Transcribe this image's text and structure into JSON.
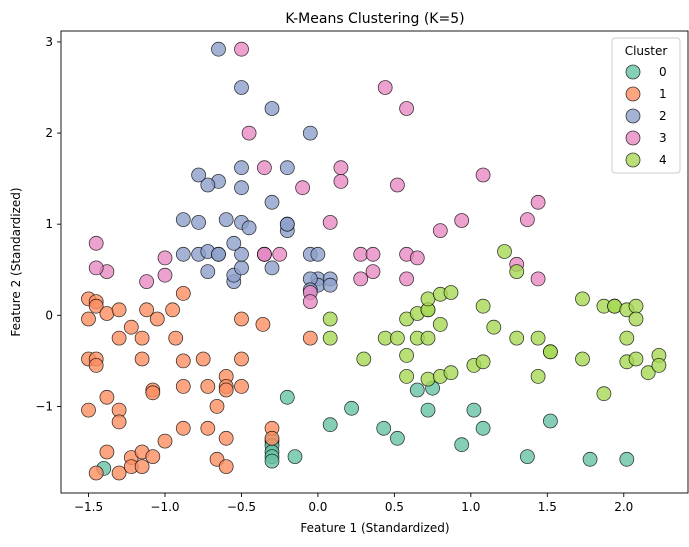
{
  "chart_data": {
    "type": "scatter",
    "title": "K-Means Clustering (K=5)",
    "xlabel": "Feature 1 (Standardized)",
    "ylabel": "Feature 2 (Standardized)",
    "xlim": [
      -1.68,
      2.42
    ],
    "ylim": [
      -1.95,
      3.12
    ],
    "xticks": [
      -1.5,
      -1.0,
      -0.5,
      0.0,
      0.5,
      1.0,
      1.5,
      2.0
    ],
    "xtick_labels": [
      "−1.5",
      "−1.0",
      "−0.5",
      "0.0",
      "0.5",
      "1.0",
      "1.5",
      "2.0"
    ],
    "yticks": [
      -1,
      0,
      1,
      2,
      3
    ],
    "ytick_labels": [
      "−1",
      "0",
      "1",
      "2",
      "3"
    ],
    "grid": false,
    "legend": {
      "title": "Cluster",
      "placement": "top-right"
    },
    "series": [
      {
        "name": "0",
        "color": "#66c2a5",
        "points": [
          [
            -1.4,
            -1.68
          ],
          [
            -0.3,
            -1.38
          ],
          [
            -0.3,
            -1.43
          ],
          [
            -0.3,
            -1.5
          ],
          [
            -0.3,
            -1.55
          ],
          [
            -0.3,
            -1.6
          ],
          [
            -0.2,
            -0.9
          ],
          [
            -0.15,
            -1.55
          ],
          [
            0.08,
            -1.2
          ],
          [
            0.22,
            -1.02
          ],
          [
            0.43,
            -1.24
          ],
          [
            0.52,
            -1.35
          ],
          [
            0.65,
            -0.82
          ],
          [
            0.72,
            -1.04
          ],
          [
            0.75,
            -0.8
          ],
          [
            0.94,
            -1.42
          ],
          [
            1.02,
            -1.04
          ],
          [
            1.08,
            -1.24
          ],
          [
            1.37,
            -1.55
          ],
          [
            1.52,
            -1.16
          ],
          [
            1.78,
            -1.58
          ],
          [
            2.02,
            -1.58
          ]
        ]
      },
      {
        "name": "1",
        "color": "#fc8d62",
        "points": [
          [
            -1.5,
            0.18
          ],
          [
            -1.5,
            -0.04
          ],
          [
            -1.5,
            -0.48
          ],
          [
            -1.5,
            -1.04
          ],
          [
            -1.45,
            0.15
          ],
          [
            -1.45,
            0.1
          ],
          [
            -1.45,
            -0.48
          ],
          [
            -1.45,
            -0.55
          ],
          [
            -1.45,
            -1.73
          ],
          [
            -1.38,
            0.02
          ],
          [
            -1.38,
            -0.9
          ],
          [
            -1.38,
            -1.5
          ],
          [
            -1.3,
            0.06
          ],
          [
            -1.3,
            -0.25
          ],
          [
            -1.3,
            -1.04
          ],
          [
            -1.3,
            -1.17
          ],
          [
            -1.3,
            -1.73
          ],
          [
            -1.22,
            -0.13
          ],
          [
            -1.22,
            -1.56
          ],
          [
            -1.22,
            -1.66
          ],
          [
            -1.15,
            -0.25
          ],
          [
            -1.15,
            -0.48
          ],
          [
            -1.15,
            -1.5
          ],
          [
            -1.15,
            -1.66
          ],
          [
            -1.12,
            0.06
          ],
          [
            -1.08,
            -0.82
          ],
          [
            -1.08,
            -0.85
          ],
          [
            -1.08,
            -1.55
          ],
          [
            -1.05,
            -0.04
          ],
          [
            -1.0,
            -1.38
          ],
          [
            -0.95,
            0.06
          ],
          [
            -0.93,
            -0.25
          ],
          [
            -0.88,
            0.24
          ],
          [
            -0.88,
            -0.5
          ],
          [
            -0.88,
            -0.78
          ],
          [
            -0.88,
            -1.24
          ],
          [
            -0.75,
            -0.48
          ],
          [
            -0.72,
            -0.78
          ],
          [
            -0.72,
            -1.24
          ],
          [
            -0.66,
            -1.0
          ],
          [
            -0.66,
            -1.58
          ],
          [
            -0.6,
            -0.67
          ],
          [
            -0.6,
            -0.78
          ],
          [
            -0.6,
            -0.82
          ],
          [
            -0.6,
            -1.35
          ],
          [
            -0.6,
            -1.66
          ],
          [
            -0.5,
            -0.04
          ],
          [
            -0.5,
            -0.48
          ],
          [
            -0.5,
            -0.78
          ],
          [
            -0.3,
            -1.24
          ],
          [
            -0.3,
            -1.35
          ],
          [
            -0.36,
            -0.1
          ],
          [
            -0.05,
            -0.25
          ]
        ]
      },
      {
        "name": "2",
        "color": "#8da0cb",
        "points": [
          [
            -0.65,
            2.92
          ],
          [
            -0.5,
            2.5
          ],
          [
            -0.3,
            2.27
          ],
          [
            -0.05,
            2.0
          ],
          [
            -0.2,
            1.62
          ],
          [
            -0.3,
            1.24
          ],
          [
            -0.5,
            1.62
          ],
          [
            -0.5,
            1.4
          ],
          [
            -0.5,
            1.02
          ],
          [
            -0.6,
            1.05
          ],
          [
            -0.65,
            1.47
          ],
          [
            -0.72,
            1.43
          ],
          [
            -0.78,
            1.54
          ],
          [
            -0.78,
            1.02
          ],
          [
            -0.88,
            1.05
          ],
          [
            -0.88,
            0.67
          ],
          [
            -0.78,
            0.67
          ],
          [
            -0.72,
            0.7
          ],
          [
            -0.72,
            0.48
          ],
          [
            -0.65,
            0.67
          ],
          [
            -0.65,
            0.67
          ],
          [
            -0.55,
            0.37
          ],
          [
            -0.55,
            0.44
          ],
          [
            -0.5,
            0.52
          ],
          [
            -0.5,
            0.67
          ],
          [
            -0.45,
            0.96
          ],
          [
            -0.55,
            0.79
          ],
          [
            -0.35,
            0.67
          ],
          [
            -0.3,
            0.52
          ],
          [
            -0.2,
            0.93
          ],
          [
            -0.2,
            1.0
          ],
          [
            -0.2,
            1.0
          ],
          [
            -0.05,
            0.67
          ],
          [
            0.0,
            0.67
          ],
          [
            0.0,
            0.4
          ],
          [
            0.0,
            0.33
          ],
          [
            0.08,
            0.4
          ],
          [
            0.08,
            0.33
          ],
          [
            -0.05,
            0.4
          ],
          [
            -0.05,
            0.28
          ]
        ]
      },
      {
        "name": "3",
        "color": "#e78ac3",
        "points": [
          [
            -0.5,
            2.92
          ],
          [
            -0.45,
            2.0
          ],
          [
            -0.35,
            1.62
          ],
          [
            -0.35,
            0.67
          ],
          [
            -0.35,
            0.67
          ],
          [
            -0.25,
            0.67
          ],
          [
            -0.1,
            1.4
          ],
          [
            -0.05,
            0.25
          ],
          [
            -0.05,
            0.15
          ],
          [
            0.08,
            1.02
          ],
          [
            0.15,
            1.62
          ],
          [
            0.15,
            1.47
          ],
          [
            0.28,
            0.67
          ],
          [
            0.28,
            0.4
          ],
          [
            0.36,
            0.48
          ],
          [
            0.36,
            0.67
          ],
          [
            0.44,
            2.5
          ],
          [
            0.52,
            1.43
          ],
          [
            0.58,
            2.27
          ],
          [
            0.58,
            0.67
          ],
          [
            0.58,
            0.4
          ],
          [
            0.65,
            0.63
          ],
          [
            0.8,
            0.93
          ],
          [
            0.94,
            1.04
          ],
          [
            1.08,
            1.54
          ],
          [
            1.3,
            0.56
          ],
          [
            1.37,
            1.05
          ],
          [
            1.44,
            1.24
          ],
          [
            1.44,
            0.4
          ],
          [
            -1.0,
            0.63
          ],
          [
            -1.0,
            0.44
          ],
          [
            -1.12,
            0.37
          ],
          [
            -1.38,
            0.48
          ],
          [
            -1.45,
            0.52
          ],
          [
            -1.45,
            0.79
          ]
        ]
      },
      {
        "name": "4",
        "color": "#a6d854",
        "points": [
          [
            0.08,
            -0.04
          ],
          [
            0.08,
            -0.25
          ],
          [
            0.3,
            -0.48
          ],
          [
            0.44,
            -0.25
          ],
          [
            0.52,
            -0.25
          ],
          [
            0.58,
            -0.04
          ],
          [
            0.58,
            -0.44
          ],
          [
            0.58,
            -0.67
          ],
          [
            0.65,
            0.02
          ],
          [
            0.65,
            -0.25
          ],
          [
            0.72,
            0.06
          ],
          [
            0.72,
            0.06
          ],
          [
            0.72,
            0.18
          ],
          [
            0.72,
            -0.25
          ],
          [
            0.72,
            -0.7
          ],
          [
            0.8,
            0.23
          ],
          [
            0.8,
            -0.1
          ],
          [
            0.8,
            -0.67
          ],
          [
            0.87,
            0.25
          ],
          [
            0.87,
            -0.63
          ],
          [
            1.02,
            -0.55
          ],
          [
            1.08,
            0.1
          ],
          [
            1.08,
            -0.51
          ],
          [
            1.15,
            -0.13
          ],
          [
            1.22,
            0.7
          ],
          [
            1.3,
            0.48
          ],
          [
            1.3,
            -0.25
          ],
          [
            1.44,
            -0.25
          ],
          [
            1.44,
            -0.67
          ],
          [
            1.52,
            -0.4
          ],
          [
            1.52,
            -0.4
          ],
          [
            1.73,
            0.18
          ],
          [
            1.73,
            -0.48
          ],
          [
            1.87,
            0.1
          ],
          [
            1.87,
            -0.86
          ],
          [
            1.94,
            0.1
          ],
          [
            1.94,
            0.1
          ],
          [
            2.02,
            0.06
          ],
          [
            2.02,
            -0.25
          ],
          [
            2.02,
            -0.51
          ],
          [
            2.08,
            0.1
          ],
          [
            2.08,
            -0.04
          ],
          [
            2.08,
            -0.48
          ],
          [
            2.16,
            -0.63
          ],
          [
            2.23,
            -0.44
          ],
          [
            2.23,
            -0.55
          ]
        ]
      }
    ]
  }
}
